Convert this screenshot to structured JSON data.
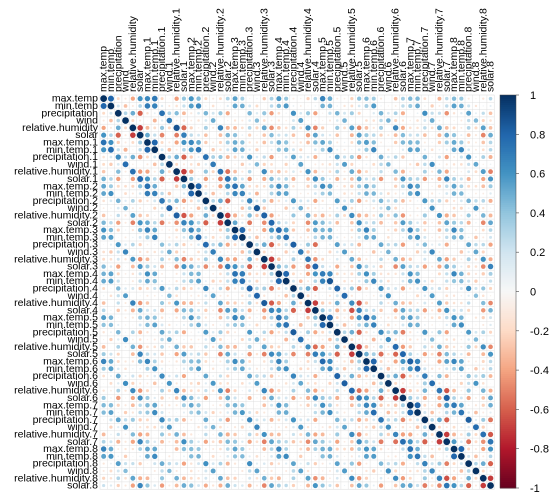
{
  "chart_data": {
    "type": "heatmap",
    "subtype": "correlation-matrix-circles",
    "variables": [
      "max.temp",
      "min.temp",
      "precipitation",
      "wind",
      "relative.humidity",
      "solar",
      "max.temp.1",
      "min.temp.1",
      "precipitation.1",
      "wind.1",
      "relative.humidity.1",
      "solar.1",
      "max.temp.2",
      "min.temp.2",
      "precipitation.2",
      "wind.2",
      "relative.humidity.2",
      "solar.2",
      "max.temp.3",
      "min.temp.3",
      "precipitation.3",
      "wind.3",
      "relative.humidity.3",
      "solar.3",
      "max.temp.4",
      "min.temp.4",
      "precipitation.4",
      "wind.4",
      "relative.humidity.4",
      "solar.4",
      "max.temp.5",
      "min.temp.5",
      "precipitation.5",
      "wind.5",
      "relative.humidity.5",
      "solar.5",
      "max.temp.6",
      "min.temp.6",
      "precipitation.6",
      "wind.6",
      "relative.humidity.6",
      "solar.6",
      "max.temp.7",
      "min.temp.7",
      "precipitation.7",
      "wind.7",
      "relative.humidity.7",
      "solar.7",
      "max.temp.8",
      "min.temp.8",
      "precipitation.8",
      "wind.8",
      "relative.humidity.8",
      "solar.8"
    ],
    "within_group_r": [
      [
        1.0,
        0.8,
        -0.2,
        -0.1,
        -0.4,
        0.6
      ],
      [
        0.8,
        1.0,
        0.2,
        -0.3,
        -0.1,
        0.3
      ],
      [
        -0.2,
        0.2,
        1.0,
        0.3,
        0.5,
        -0.6
      ],
      [
        -0.1,
        -0.3,
        0.3,
        1.0,
        -0.2,
        -0.1
      ],
      [
        -0.4,
        -0.1,
        0.5,
        -0.2,
        1.0,
        -0.7
      ],
      [
        0.6,
        0.3,
        -0.6,
        -0.1,
        -0.7,
        1.0
      ]
    ],
    "diagonal_value": 1,
    "color_range": [
      -1,
      1
    ],
    "colorbar_ticks": [
      1,
      0.8,
      0.6,
      0.4,
      0.2,
      0,
      -0.2,
      -0.4,
      -0.6,
      -0.8,
      -1
    ],
    "colors": {
      "strong_negative": "#67001f",
      "negative": "#d6604d",
      "neutral": "#f7f7f7",
      "positive": "#4393c3",
      "strong_positive": "#053061",
      "grid": "#d9d9d9"
    }
  }
}
